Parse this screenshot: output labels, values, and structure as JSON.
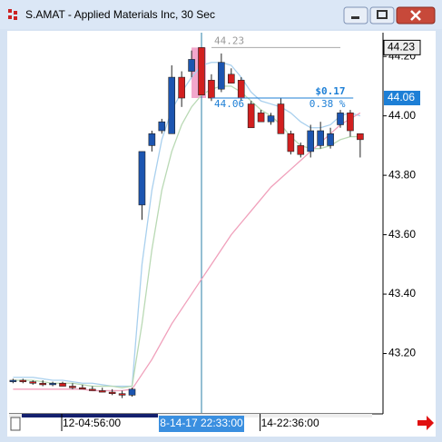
{
  "chart_data": {
    "type": "candlestick",
    "title": "S.AMAT - Applied Materials Inc, 30 Sec",
    "up_color": "#1c55b0",
    "down_color": "#d21f1f",
    "open": [
      43.105,
      43.11,
      43.105,
      43.1,
      43.095,
      43.1,
      43.09,
      43.085,
      43.08,
      43.075,
      43.07,
      43.065,
      43.06,
      43.7,
      43.9,
      43.95,
      43.94,
      44.13,
      44.15,
      44.23,
      44.12,
      44.09,
      44.14,
      44.12,
      44.04,
      44.01,
      43.98,
      44.04,
      43.94,
      43.9,
      43.88,
      43.9,
      43.9,
      43.97,
      44.01,
      43.94
    ],
    "high": [
      43.115,
      43.115,
      43.11,
      43.11,
      43.105,
      43.105,
      43.1,
      43.095,
      43.09,
      43.085,
      43.08,
      43.075,
      43.085,
      43.88,
      43.95,
      43.99,
      44.17,
      44.15,
      44.22,
      44.23,
      44.14,
      44.21,
      44.16,
      44.13,
      44.05,
      44.02,
      44.01,
      44.06,
      43.95,
      43.91,
      43.97,
      43.98,
      43.96,
      44.02,
      44.02,
      43.94
    ],
    "low": [
      43.1,
      43.1,
      43.095,
      43.09,
      43.09,
      43.09,
      43.08,
      43.08,
      43.075,
      43.07,
      43.06,
      43.05,
      43.055,
      43.65,
      43.88,
      43.94,
      43.94,
      44.03,
      44.13,
      44.07,
      44.05,
      44.08,
      44.11,
      44.05,
      43.96,
      43.98,
      43.97,
      43.94,
      43.87,
      43.86,
      43.86,
      43.89,
      43.89,
      43.96,
      43.93,
      43.86
    ],
    "close": [
      43.11,
      43.105,
      43.1,
      43.095,
      43.1,
      43.09,
      43.085,
      43.08,
      43.075,
      43.07,
      43.065,
      43.06,
      43.08,
      43.88,
      43.94,
      43.98,
      44.13,
      44.06,
      44.19,
      44.07,
      44.06,
      44.18,
      44.11,
      44.06,
      43.96,
      43.98,
      44.0,
      43.94,
      43.88,
      43.87,
      43.95,
      43.95,
      43.94,
      44.01,
      43.95,
      43.92
    ],
    "series": [
      {
        "color": "#a9d0ee",
        "values": [
          43.12,
          43.12,
          43.12,
          43.115,
          43.11,
          43.11,
          43.105,
          43.1,
          43.1,
          43.095,
          43.09,
          43.09,
          43.09,
          43.5,
          43.75,
          43.92,
          44.02,
          44.08,
          44.13,
          44.17,
          44.18,
          44.18,
          44.17,
          44.13,
          44.08,
          44.05,
          44.04,
          44.03,
          44.01,
          43.98,
          43.96,
          43.96,
          43.97,
          44.0,
          44.01,
          44.0
        ]
      },
      {
        "color": "#b9d9b4",
        "values": [
          43.11,
          43.11,
          43.11,
          43.105,
          43.1,
          43.1,
          43.1,
          43.095,
          43.09,
          43.09,
          43.09,
          43.085,
          43.09,
          43.3,
          43.55,
          43.75,
          43.88,
          43.97,
          44.03,
          44.07,
          44.09,
          44.1,
          44.1,
          44.08,
          44.05,
          44.02,
          44.0,
          43.97,
          43.93,
          43.9,
          43.89,
          43.89,
          43.9,
          43.92,
          43.93,
          43.93
        ]
      },
      {
        "color": "#f0a0bb",
        "values": [
          43.08,
          43.08,
          43.08,
          43.08,
          43.08,
          43.08,
          43.08,
          43.08,
          43.075,
          43.075,
          43.075,
          43.075,
          43.08,
          43.13,
          43.18,
          43.24,
          43.3,
          43.35,
          43.4,
          43.45,
          43.5,
          43.55,
          43.6,
          43.64,
          43.68,
          43.72,
          43.76,
          43.79,
          43.82,
          43.85,
          43.88,
          43.91,
          43.94,
          43.97,
          43.99,
          44.01
        ]
      }
    ],
    "xlim": [
      -0.4,
      37.3
    ],
    "xticks": [
      {
        "value": 5,
        "label": "12-04:56:00"
      },
      {
        "value": 25,
        "label": "14-22:36:00"
      }
    ],
    "crosshair": {
      "value": 19,
      "label": "8-14-17 22:33:00"
    },
    "ylim": [
      43.0,
      44.28
    ],
    "yticks": [
      {
        "value": 43.2,
        "label": "43.20"
      },
      {
        "value": 43.4,
        "label": "43.40"
      },
      {
        "value": 43.6,
        "label": "43.60"
      },
      {
        "value": 43.8,
        "label": "43.80"
      },
      {
        "value": 44.0,
        "label": "44.00"
      },
      {
        "value": 44.2,
        "label": "44.20"
      }
    ],
    "measure": {
      "high": 44.23,
      "low": 44.06,
      "change": "$0.17",
      "percent": "0.38 %"
    }
  }
}
